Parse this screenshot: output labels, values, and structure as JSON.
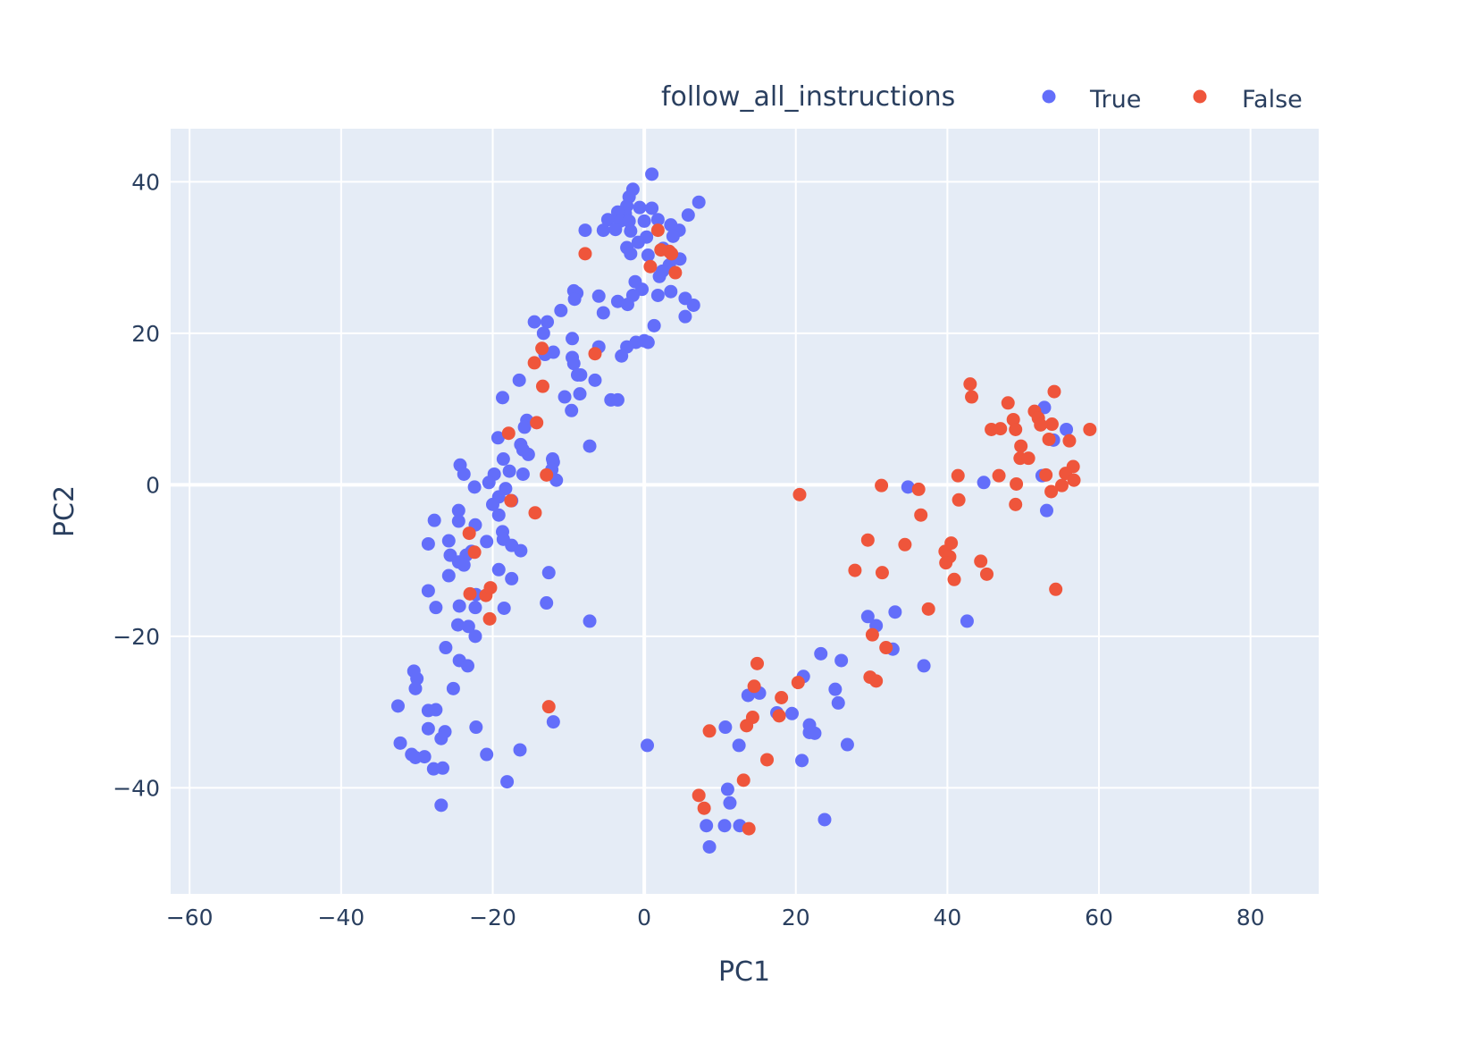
{
  "chart_data": {
    "type": "scatter",
    "xlabel": "PC1",
    "ylabel": "PC2",
    "xlim": [
      -62.5,
      89
    ],
    "ylim": [
      -54,
      47
    ],
    "x_ticks": [
      -60,
      -40,
      -20,
      0,
      20,
      40,
      60,
      80
    ],
    "y_ticks": [
      -40,
      -20,
      0,
      20,
      40
    ],
    "grid": true,
    "background": "#e5ecf6",
    "legend": {
      "title": "follow_all_instructions",
      "position": "top-right",
      "orientation": "horizontal"
    },
    "series": [
      {
        "name": "True",
        "color": "#636efa",
        "points": [
          [
            1,
            41
          ],
          [
            -1.5,
            39
          ],
          [
            7.2,
            37.3
          ],
          [
            -2,
            38
          ],
          [
            -2.3,
            36.8
          ],
          [
            1,
            36.5
          ],
          [
            -0.6,
            36.6
          ],
          [
            -2.5,
            35.8
          ],
          [
            -3.5,
            36
          ],
          [
            -4.8,
            35
          ],
          [
            -3.2,
            34.8
          ],
          [
            -2,
            34.8
          ],
          [
            0,
            34.8
          ],
          [
            1.8,
            35
          ],
          [
            3.5,
            34.3
          ],
          [
            5.8,
            35.6
          ],
          [
            -1.8,
            33.5
          ],
          [
            -3.8,
            33.7
          ],
          [
            -5.4,
            33.6
          ],
          [
            -7.8,
            33.6
          ],
          [
            4.6,
            33.6
          ],
          [
            3.8,
            32.8
          ],
          [
            0.3,
            32.7
          ],
          [
            -0.8,
            32
          ],
          [
            2.5,
            31.2
          ],
          [
            -2.3,
            31.3
          ],
          [
            -1.8,
            30.5
          ],
          [
            0.5,
            30.3
          ],
          [
            4.7,
            29.8
          ],
          [
            3.3,
            29
          ],
          [
            2.4,
            28.2
          ],
          [
            2,
            27.5
          ],
          [
            -1.2,
            26.8
          ],
          [
            3.5,
            25.5
          ],
          [
            -0.3,
            25.8
          ],
          [
            -1.5,
            25
          ],
          [
            1.8,
            25
          ],
          [
            5.4,
            24.6
          ],
          [
            -6,
            24.9
          ],
          [
            -8.9,
            25.3
          ],
          [
            -9.3,
            25.6
          ],
          [
            -9.2,
            24.5
          ],
          [
            -3.5,
            24.2
          ],
          [
            -2.2,
            23.8
          ],
          [
            6.5,
            23.7
          ],
          [
            -5.4,
            22.7
          ],
          [
            -11,
            23
          ],
          [
            5.4,
            22.2
          ],
          [
            1.3,
            21
          ],
          [
            -14.5,
            21.5
          ],
          [
            -12.8,
            21.5
          ],
          [
            -13.3,
            20
          ],
          [
            -9.5,
            19.3
          ],
          [
            -1.1,
            18.8
          ],
          [
            0,
            19
          ],
          [
            0.5,
            18.8
          ],
          [
            -2.3,
            18.2
          ],
          [
            -6,
            18.2
          ],
          [
            -12,
            17.5
          ],
          [
            -9.5,
            16.8
          ],
          [
            -13.1,
            17.2
          ],
          [
            -3,
            17
          ],
          [
            -9.3,
            16
          ],
          [
            -8.4,
            14.5
          ],
          [
            -8.8,
            14.5
          ],
          [
            -6.5,
            13.8
          ],
          [
            -16.5,
            13.8
          ],
          [
            -10.5,
            11.6
          ],
          [
            -8.5,
            12
          ],
          [
            -18.7,
            11.5
          ],
          [
            -4.4,
            11.2
          ],
          [
            -3.5,
            11.2
          ],
          [
            -9.6,
            9.8
          ],
          [
            -15.5,
            8.5
          ],
          [
            -15.8,
            7.6
          ],
          [
            -19.3,
            6.2
          ],
          [
            -7.2,
            5.1
          ],
          [
            -16.3,
            5.3
          ],
          [
            -16,
            4.6
          ],
          [
            -15.3,
            4
          ],
          [
            -12.1,
            3.4
          ],
          [
            -12,
            3
          ],
          [
            -18.6,
            3.4
          ],
          [
            -24.3,
            2.6
          ],
          [
            -23.8,
            1.4
          ],
          [
            -17.8,
            1.8
          ],
          [
            -19.8,
            1.4
          ],
          [
            -16,
            1.4
          ],
          [
            -12.2,
            2
          ],
          [
            -11.6,
            0.6
          ],
          [
            -20.5,
            0.3
          ],
          [
            -18.3,
            -0.5
          ],
          [
            -22.4,
            -0.3
          ],
          [
            -19.2,
            -1.6
          ],
          [
            -20,
            -2.6
          ],
          [
            -17.5,
            -2.1
          ],
          [
            -19.2,
            -4
          ],
          [
            -27.7,
            -4.7
          ],
          [
            -24.5,
            -3.4
          ],
          [
            -24.5,
            -4.8
          ],
          [
            -22.3,
            -5.3
          ],
          [
            -18.7,
            -6.2
          ],
          [
            -28.5,
            -7.8
          ],
          [
            -25.8,
            -7.4
          ],
          [
            -18.6,
            -7.2
          ],
          [
            -20.8,
            -7.5
          ],
          [
            -17.5,
            -8
          ],
          [
            -16.3,
            -8.7
          ],
          [
            -22.8,
            -8.8
          ],
          [
            -25.6,
            -9.3
          ],
          [
            -23.5,
            -9.3
          ],
          [
            -24.5,
            -10.2
          ],
          [
            -23.8,
            -10.6
          ],
          [
            -19.2,
            -11.2
          ],
          [
            -25.8,
            -12
          ],
          [
            -17.5,
            -12.4
          ],
          [
            -12.6,
            -11.6
          ],
          [
            -28.5,
            -14
          ],
          [
            -22.2,
            -14.5
          ],
          [
            -24.4,
            -16
          ],
          [
            -27.5,
            -16.2
          ],
          [
            -22.3,
            -16.2
          ],
          [
            -18.5,
            -16.3
          ],
          [
            -12.9,
            -15.6
          ],
          [
            -7.2,
            -18
          ],
          [
            -24.6,
            -18.5
          ],
          [
            -23.2,
            -18.7
          ],
          [
            -22.3,
            -20
          ],
          [
            -26.2,
            -21.5
          ],
          [
            -24.4,
            -23.2
          ],
          [
            -23.3,
            -23.9
          ],
          [
            -30.4,
            -24.6
          ],
          [
            -30,
            -25.6
          ],
          [
            -30.2,
            -26.9
          ],
          [
            -25.2,
            -26.9
          ],
          [
            -32.5,
            -29.2
          ],
          [
            -28.5,
            -29.8
          ],
          [
            -27.5,
            -29.7
          ],
          [
            -22.2,
            -32
          ],
          [
            -28.5,
            -32.2
          ],
          [
            -26.3,
            -32.6
          ],
          [
            -26.8,
            -33.5
          ],
          [
            -12,
            -31.3
          ],
          [
            -32.2,
            -34.1
          ],
          [
            -30.7,
            -35.6
          ],
          [
            -30.2,
            -36
          ],
          [
            -29,
            -35.9
          ],
          [
            -20.8,
            -35.6
          ],
          [
            -16.4,
            -35
          ],
          [
            -27.8,
            -37.5
          ],
          [
            -26.6,
            -37.4
          ],
          [
            -18.1,
            -39.2
          ],
          [
            -26.8,
            -42.3
          ],
          [
            0.4,
            -34.4
          ],
          [
            10.7,
            -32
          ],
          [
            12.5,
            -34.4
          ],
          [
            13.7,
            -27.8
          ],
          [
            15.2,
            -27.5
          ],
          [
            17.5,
            -30.1
          ],
          [
            19.5,
            -30.2
          ],
          [
            20.8,
            -36.4
          ],
          [
            21,
            -25.3
          ],
          [
            21.8,
            -32.7
          ],
          [
            22.5,
            -32.8
          ],
          [
            21.8,
            -31.7
          ],
          [
            23.3,
            -22.3
          ],
          [
            25.2,
            -27
          ],
          [
            25.6,
            -28.8
          ],
          [
            26,
            -23.2
          ],
          [
            26.8,
            -34.3
          ],
          [
            29.5,
            -17.4
          ],
          [
            30.6,
            -18.6
          ],
          [
            32.8,
            -21.7
          ],
          [
            33.1,
            -16.8
          ],
          [
            36.9,
            -23.9
          ],
          [
            42.6,
            -18
          ],
          [
            11,
            -40.2
          ],
          [
            11.3,
            -42
          ],
          [
            8.2,
            -45
          ],
          [
            10.6,
            -45
          ],
          [
            12.6,
            -45
          ],
          [
            8.6,
            -47.8
          ],
          [
            23.8,
            -44.2
          ],
          [
            34.8,
            -0.3
          ],
          [
            44.8,
            0.3
          ],
          [
            52.5,
            1.2
          ],
          [
            52.8,
            10.2
          ],
          [
            54,
            5.9
          ],
          [
            55.7,
            7.3
          ],
          [
            53.1,
            -3.4
          ]
        ]
      },
      {
        "name": "False",
        "color": "#ef553b",
        "points": [
          [
            1.8,
            33.6
          ],
          [
            -7.8,
            30.5
          ],
          [
            2.2,
            31
          ],
          [
            3.3,
            30.8
          ],
          [
            3.6,
            30.5
          ],
          [
            0.8,
            28.8
          ],
          [
            4.1,
            28
          ],
          [
            -13.5,
            18
          ],
          [
            -14.5,
            16.1
          ],
          [
            -6.5,
            17.3
          ],
          [
            -13.4,
            13
          ],
          [
            -14.2,
            8.2
          ],
          [
            -17.9,
            6.8
          ],
          [
            -12.9,
            1.3
          ],
          [
            -17.6,
            -2.1
          ],
          [
            -14.4,
            -3.7
          ],
          [
            -23.1,
            -6.4
          ],
          [
            -22.4,
            -8.9
          ],
          [
            -23,
            -14.4
          ],
          [
            -20.9,
            -14.6
          ],
          [
            -20.3,
            -13.6
          ],
          [
            -20.4,
            -17.7
          ],
          [
            -12.6,
            -29.3
          ],
          [
            20.5,
            -1.3
          ],
          [
            31.3,
            -0.1
          ],
          [
            36.2,
            -0.6
          ],
          [
            36.5,
            -4
          ],
          [
            41.4,
            1.2
          ],
          [
            41.5,
            -2
          ],
          [
            29.5,
            -7.3
          ],
          [
            34.4,
            -7.9
          ],
          [
            39.7,
            -8.8
          ],
          [
            40.5,
            -7.7
          ],
          [
            40.3,
            -9.5
          ],
          [
            39.8,
            -10.3
          ],
          [
            40.9,
            -12.5
          ],
          [
            44.4,
            -10.1
          ],
          [
            45.2,
            -11.8
          ],
          [
            27.8,
            -11.3
          ],
          [
            31.4,
            -11.6
          ],
          [
            37.5,
            -16.4
          ],
          [
            30.1,
            -19.8
          ],
          [
            31.9,
            -21.5
          ],
          [
            29.8,
            -25.4
          ],
          [
            30.6,
            -25.9
          ],
          [
            14.9,
            -23.6
          ],
          [
            14.5,
            -26.6
          ],
          [
            20.3,
            -26.1
          ],
          [
            18.1,
            -28.1
          ],
          [
            14.3,
            -30.7
          ],
          [
            13.5,
            -31.8
          ],
          [
            17.8,
            -30.5
          ],
          [
            8.6,
            -32.5
          ],
          [
            16.2,
            -36.3
          ],
          [
            13.1,
            -39
          ],
          [
            7.2,
            -41
          ],
          [
            7.9,
            -42.7
          ],
          [
            13.8,
            -45.4
          ],
          [
            43,
            13.3
          ],
          [
            43.2,
            11.6
          ],
          [
            54.1,
            12.3
          ],
          [
            48,
            10.8
          ],
          [
            51.5,
            9.7
          ],
          [
            48.7,
            8.6
          ],
          [
            52,
            8.8
          ],
          [
            53.8,
            8
          ],
          [
            52.3,
            7.9
          ],
          [
            45.8,
            7.3
          ],
          [
            47,
            7.4
          ],
          [
            49,
            7.3
          ],
          [
            53.4,
            6
          ],
          [
            56.1,
            5.8
          ],
          [
            58.8,
            7.3
          ],
          [
            49.7,
            5.1
          ],
          [
            49.6,
            3.5
          ],
          [
            50.7,
            3.5
          ],
          [
            56.6,
            2.4
          ],
          [
            53,
            1.3
          ],
          [
            55.6,
            1.5
          ],
          [
            46.8,
            1.2
          ],
          [
            49.1,
            0.1
          ],
          [
            56.7,
            0.6
          ],
          [
            55.1,
            -0.1
          ],
          [
            53.7,
            -0.9
          ],
          [
            49,
            -2.6
          ],
          [
            54.3,
            -13.8
          ]
        ]
      }
    ]
  }
}
